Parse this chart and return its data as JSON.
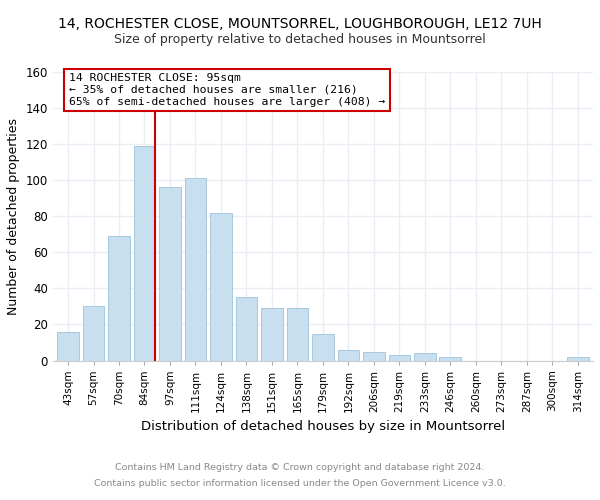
{
  "title": "14, ROCHESTER CLOSE, MOUNTSORREL, LOUGHBOROUGH, LE12 7UH",
  "subtitle": "Size of property relative to detached houses in Mountsorrel",
  "xlabel": "Distribution of detached houses by size in Mountsorrel",
  "ylabel": "Number of detached properties",
  "footer_line1": "Contains HM Land Registry data © Crown copyright and database right 2024.",
  "footer_line2": "Contains public sector information licensed under the Open Government Licence v3.0.",
  "bar_labels": [
    "43sqm",
    "57sqm",
    "70sqm",
    "84sqm",
    "97sqm",
    "111sqm",
    "124sqm",
    "138sqm",
    "151sqm",
    "165sqm",
    "179sqm",
    "192sqm",
    "206sqm",
    "219sqm",
    "233sqm",
    "246sqm",
    "260sqm",
    "273sqm",
    "287sqm",
    "300sqm",
    "314sqm"
  ],
  "bar_heights": [
    16,
    30,
    69,
    119,
    96,
    101,
    82,
    35,
    29,
    29,
    15,
    6,
    5,
    3,
    4,
    2,
    0,
    0,
    0,
    0,
    2
  ],
  "bar_color": "#c8dff0",
  "bar_edge_color": "#a8c8e0",
  "vline_color": "#cc0000",
  "ylim": [
    0,
    160
  ],
  "yticks": [
    0,
    20,
    40,
    60,
    80,
    100,
    120,
    140,
    160
  ],
  "annotation_title": "14 ROCHESTER CLOSE: 95sqm",
  "annotation_line1": "← 35% of detached houses are smaller (216)",
  "annotation_line2": "65% of semi-detached houses are larger (408) →",
  "bg_color": "#ffffff",
  "grid_color": "#e8eef4",
  "vline_bar_index": 3
}
